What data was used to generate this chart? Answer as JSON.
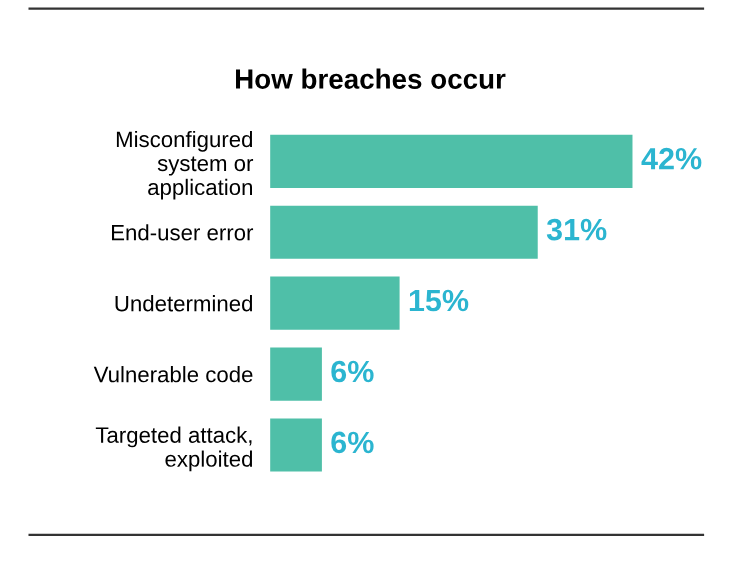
{
  "chart_data": {
    "type": "bar",
    "orientation": "horizontal",
    "title": "How breaches occur",
    "categories": [
      "Misconfigured\nsystem or\napplication",
      "End-user error",
      "Undetermined",
      "Vulnerable code",
      "Targeted attack,\nexploited"
    ],
    "values": [
      42,
      31,
      15,
      6,
      6
    ],
    "color": "#4fbfa8",
    "value_labels": [
      "42%",
      "31%",
      "15%",
      "6%",
      "6%"
    ],
    "grid": false,
    "legend": false
  }
}
